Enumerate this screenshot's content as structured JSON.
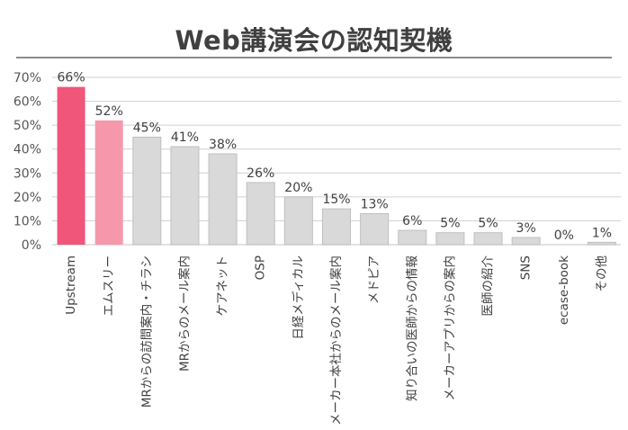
{
  "chart_data": {
    "type": "bar",
    "title": "Web講演会の認知契機",
    "categories": [
      "Upstream",
      "エムスリー",
      "MRからの訪問案内・チラシ",
      "MRからのメール案内",
      "ケアネット",
      "OSP",
      "日経メディカル",
      "メーカー本社からのメール案内",
      "メドピア",
      "知り合いの医師からの情報",
      "メーカーアプリからの案内",
      "医師の紹介",
      "SNS",
      "ecase-book",
      "その他"
    ],
    "values": [
      66,
      52,
      45,
      41,
      38,
      26,
      20,
      15,
      13,
      6,
      5,
      5,
      3,
      0,
      1
    ],
    "data_labels": [
      "66%",
      "52%",
      "45%",
      "41%",
      "38%",
      "26%",
      "20%",
      "15%",
      "13%",
      "6%",
      "5%",
      "5%",
      "3%",
      "0%",
      "1%"
    ],
    "ylim": [
      0,
      70
    ],
    "yticks": [
      "0%",
      "10%",
      "20%",
      "30%",
      "40%",
      "50%",
      "60%",
      "70%"
    ],
    "grid": true,
    "colors": {
      "bar_1": "#f0557a",
      "bar_2": "#f598ac",
      "bar_other": "#d9d9d9",
      "bar_stroke": "#bfbfbf",
      "grid": "#d0d0d0"
    }
  }
}
